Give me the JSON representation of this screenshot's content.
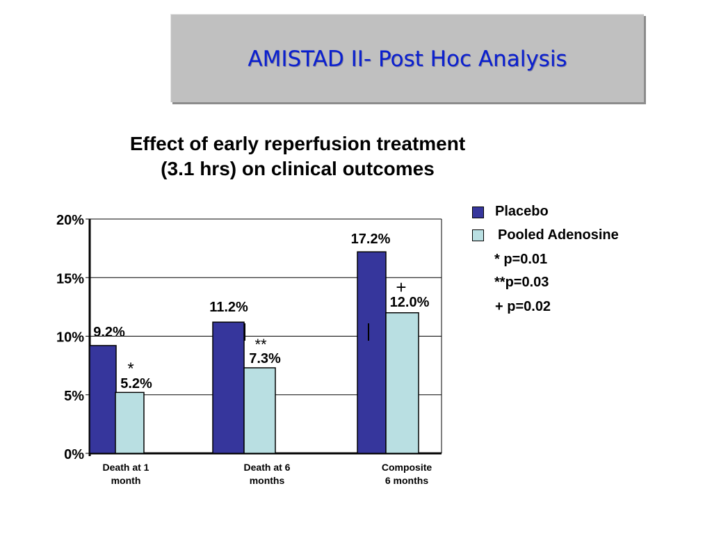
{
  "header": {
    "title": "AMISTAD II- Post Hoc Analysis"
  },
  "colors": {
    "title_text": "#0a1fcf",
    "title_box": "#c0c0c0",
    "placebo": "#36369c",
    "pooled_adenosine": "#b9dfe2"
  },
  "chart_data": {
    "type": "bar",
    "title_lines": [
      "Effect of early reperfusion treatment",
      "(3.1 hrs) on clinical outcomes"
    ],
    "categories": [
      [
        "Death at 1",
        "month"
      ],
      [
        "Death at 6",
        "months"
      ],
      [
        "Composite",
        "6 months"
      ]
    ],
    "series": [
      {
        "name": "Placebo",
        "values": [
          9.2,
          11.2,
          17.2
        ],
        "labels": [
          "9.2%",
          "11.2%",
          "17.2%"
        ],
        "color": "#36369c"
      },
      {
        "name": "Pooled Adenosine",
        "values": [
          5.2,
          7.3,
          12.0
        ],
        "labels": [
          "5.2%",
          "7.3%",
          "12.0%"
        ],
        "color": "#b9dfe2"
      }
    ],
    "significance_marks": [
      "*",
      "**",
      "+"
    ],
    "y_ticks": [
      {
        "value": 0,
        "label": "0%"
      },
      {
        "value": 5,
        "label": "5%"
      },
      {
        "value": 10,
        "label": "10%"
      },
      {
        "value": 15,
        "label": "15%"
      },
      {
        "value": 20,
        "label": "20%"
      }
    ],
    "ylim": [
      0,
      20
    ],
    "grid": true,
    "legend_position": "right",
    "legend_notes": [
      "* p=0.01",
      "**p=0.03",
      "+ p=0.02"
    ]
  }
}
